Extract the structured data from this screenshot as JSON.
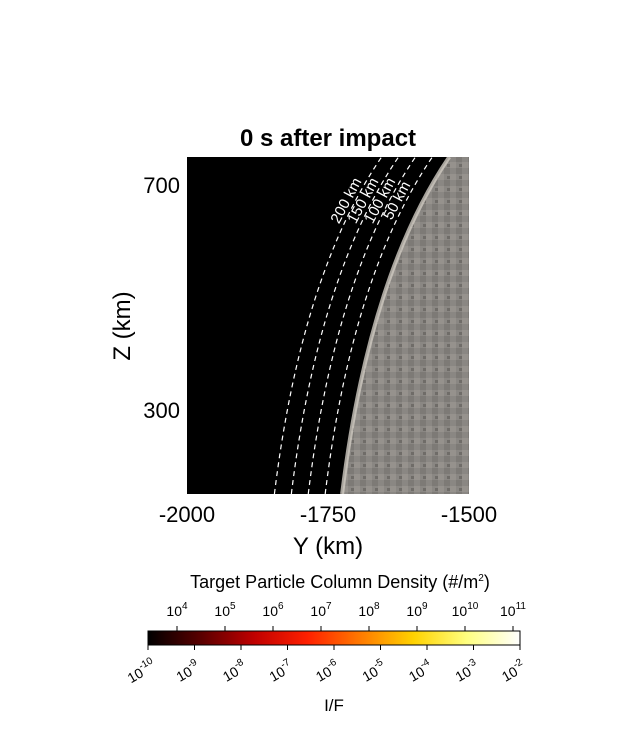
{
  "chart_data": {
    "type": "heatmap",
    "title": "0 s after impact",
    "xlabel": "Y (km)",
    "ylabel": "Z (km)",
    "xlim": [
      -2000,
      -1500
    ],
    "ylim": [
      150,
      750
    ],
    "xticks": [
      -2000,
      -1750,
      -1500
    ],
    "xtick_labels": [
      "-2000",
      "-1750",
      "-1500"
    ],
    "yticks": [
      700,
      300
    ],
    "ytick_labels": [
      "700",
      "300"
    ],
    "image_description_colors": {
      "background": "#000000",
      "surface": "#8a8783"
    },
    "contours": [
      {
        "label": "200 km",
        "offset_km": 200
      },
      {
        "label": "150 km",
        "offset_km": 150
      },
      {
        "label": "100 km",
        "offset_km": 100
      },
      {
        "label": "50 km",
        "offset_km": 50
      }
    ],
    "surface_limb": {
      "x_at_ymin": -1725,
      "x_at_ymax": -1535
    },
    "colorbar": {
      "title": "Target  Particle  Column  Density  (#/m",
      "title_sup": "2",
      "title_end": ")",
      "top_ticks": [
        {
          "base": "10",
          "exp": "4"
        },
        {
          "base": "10",
          "exp": "5"
        },
        {
          "base": "10",
          "exp": "6"
        },
        {
          "base": "10",
          "exp": "7"
        },
        {
          "base": "10",
          "exp": "8"
        },
        {
          "base": "10",
          "exp": "9"
        },
        {
          "base": "10",
          "exp": "10"
        },
        {
          "base": "10",
          "exp": "11"
        }
      ],
      "bottom_ticks": [
        {
          "base": "10",
          "exp": "-10"
        },
        {
          "base": "10",
          "exp": "-9"
        },
        {
          "base": "10",
          "exp": "-8"
        },
        {
          "base": "10",
          "exp": "-7"
        },
        {
          "base": "10",
          "exp": "-6"
        },
        {
          "base": "10",
          "exp": "-5"
        },
        {
          "base": "10",
          "exp": "-4"
        },
        {
          "base": "10",
          "exp": "-3"
        },
        {
          "base": "10",
          "exp": "-2"
        }
      ],
      "bottom_label": "I/F",
      "colormap": [
        "#000000",
        "#5a0000",
        "#c00000",
        "#ff2000",
        "#ff7a00",
        "#ffd200",
        "#ffff80",
        "#ffffff"
      ]
    }
  }
}
